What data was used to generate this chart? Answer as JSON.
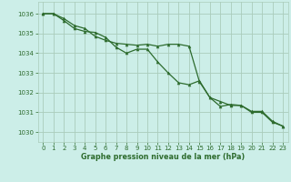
{
  "title": "Graphe pression niveau de la mer (hPa)",
  "background_color": "#cceee8",
  "grid_color": "#aaccbb",
  "line_color": "#2d6b2d",
  "xlim": [
    -0.5,
    23.5
  ],
  "ylim": [
    1029.5,
    1036.6
  ],
  "yticks": [
    1030,
    1031,
    1032,
    1033,
    1034,
    1035,
    1036
  ],
  "xticks": [
    0,
    1,
    2,
    3,
    4,
    5,
    6,
    7,
    8,
    9,
    10,
    11,
    12,
    13,
    14,
    15,
    16,
    17,
    18,
    19,
    20,
    21,
    22,
    23
  ],
  "series1_x": [
    0,
    1,
    2,
    3,
    4,
    5,
    6,
    7,
    8,
    9,
    10,
    11,
    12,
    13,
    14,
    15,
    16,
    17,
    18,
    19,
    20,
    21,
    22,
    23
  ],
  "series1_y": [
    1036.0,
    1036.0,
    1035.75,
    1035.4,
    1035.25,
    1034.85,
    1034.65,
    1034.5,
    1034.45,
    1034.4,
    1034.45,
    1034.35,
    1034.45,
    1034.45,
    1034.35,
    1032.55,
    1031.75,
    1031.55,
    1031.35,
    1031.35,
    1031.05,
    1031.05,
    1030.55,
    1030.3
  ],
  "series2_x": [
    0,
    1,
    2,
    3,
    4,
    5,
    6,
    7,
    8,
    9,
    10,
    11,
    12,
    13,
    14,
    15,
    16,
    17,
    18,
    19,
    20,
    21,
    22,
    23
  ],
  "series2_y": [
    1036.0,
    1036.0,
    1035.65,
    1035.25,
    1035.1,
    1035.05,
    1034.8,
    1034.3,
    1034.0,
    1034.2,
    1034.2,
    1033.55,
    1033.0,
    1032.5,
    1032.4,
    1032.6,
    1031.75,
    1031.3,
    1031.4,
    1031.35,
    1031.0,
    1031.0,
    1030.5,
    1030.3
  ]
}
